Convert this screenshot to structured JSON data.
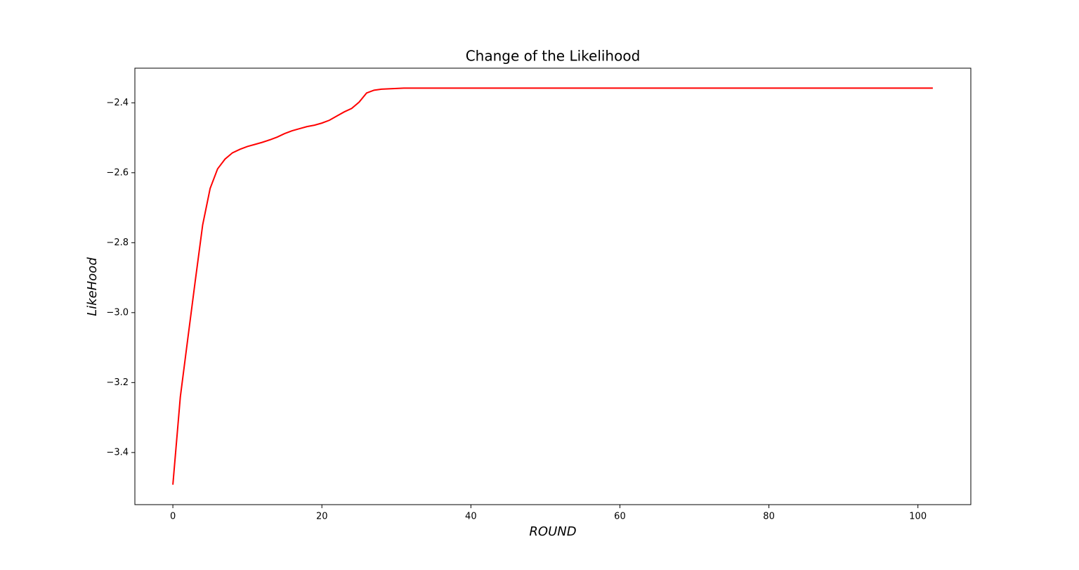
{
  "chart_data": {
    "type": "line",
    "title": "Change of the Likelihood",
    "x_label": "ROUND",
    "y_label": "LikeHood",
    "color": "#ff0000",
    "x": [
      0,
      1,
      2,
      3,
      4,
      5,
      6,
      7,
      8,
      9,
      10,
      11,
      12,
      13,
      14,
      15,
      16,
      17,
      18,
      19,
      20,
      21,
      22,
      23,
      24,
      25,
      26,
      27,
      28,
      29,
      30,
      31,
      32,
      33,
      34,
      35,
      36,
      37,
      38,
      39,
      40,
      41,
      42,
      43,
      44,
      45,
      46,
      47,
      48,
      49,
      50,
      51,
      52,
      53,
      54,
      55,
      56,
      57,
      58,
      59,
      60,
      61,
      62,
      63,
      64,
      65,
      66,
      67,
      68,
      69,
      70,
      71,
      72,
      73,
      74,
      75,
      76,
      77,
      78,
      79,
      80,
      81,
      82,
      83,
      84,
      85,
      86,
      87,
      88,
      89,
      90,
      91,
      92,
      93,
      94,
      95,
      96,
      97,
      98,
      99,
      100,
      101,
      102
    ],
    "values": [
      -3.492,
      -3.241,
      -3.075,
      -2.91,
      -2.749,
      -2.645,
      -2.589,
      -2.561,
      -2.543,
      -2.533,
      -2.525,
      -2.519,
      -2.513,
      -2.506,
      -2.498,
      -2.488,
      -2.48,
      -2.474,
      -2.468,
      -2.464,
      -2.458,
      -2.45,
      -2.438,
      -2.426,
      -2.416,
      -2.398,
      -2.372,
      -2.364,
      -2.361,
      -2.36,
      -2.359,
      -2.358,
      -2.358,
      -2.358,
      -2.358,
      -2.358,
      -2.358,
      -2.358,
      -2.358,
      -2.358,
      -2.358,
      -2.358,
      -2.358,
      -2.358,
      -2.358,
      -2.358,
      -2.358,
      -2.358,
      -2.358,
      -2.358,
      -2.358,
      -2.358,
      -2.358,
      -2.358,
      -2.358,
      -2.358,
      -2.358,
      -2.358,
      -2.358,
      -2.358,
      -2.358,
      -2.358,
      -2.358,
      -2.358,
      -2.358,
      -2.358,
      -2.358,
      -2.358,
      -2.358,
      -2.358,
      -2.358,
      -2.358,
      -2.358,
      -2.358,
      -2.358,
      -2.358,
      -2.358,
      -2.358,
      -2.358,
      -2.358,
      -2.358,
      -2.358,
      -2.358,
      -2.358,
      -2.358,
      -2.358,
      -2.358,
      -2.358,
      -2.358,
      -2.358,
      -2.358,
      -2.358,
      -2.358,
      -2.358,
      -2.358,
      -2.358,
      -2.358,
      -2.358,
      -2.358,
      -2.358,
      -2.358,
      -2.358,
      -2.358
    ],
    "xlim": [
      -5.1,
      107.1
    ],
    "xticks": [
      0,
      20,
      40,
      60,
      80,
      100
    ],
    "ylim": [
      -3.549,
      -2.301
    ],
    "yticks": [
      {
        "value": -3.4,
        "label": "−3.4"
      },
      {
        "value": -3.2,
        "label": "−3.2"
      },
      {
        "value": -3.0,
        "label": "−3.0"
      },
      {
        "value": -2.8,
        "label": "−2.8"
      },
      {
        "value": -2.6,
        "label": "−2.6"
      },
      {
        "value": -2.4,
        "label": "−2.4"
      }
    ],
    "grid": false
  }
}
